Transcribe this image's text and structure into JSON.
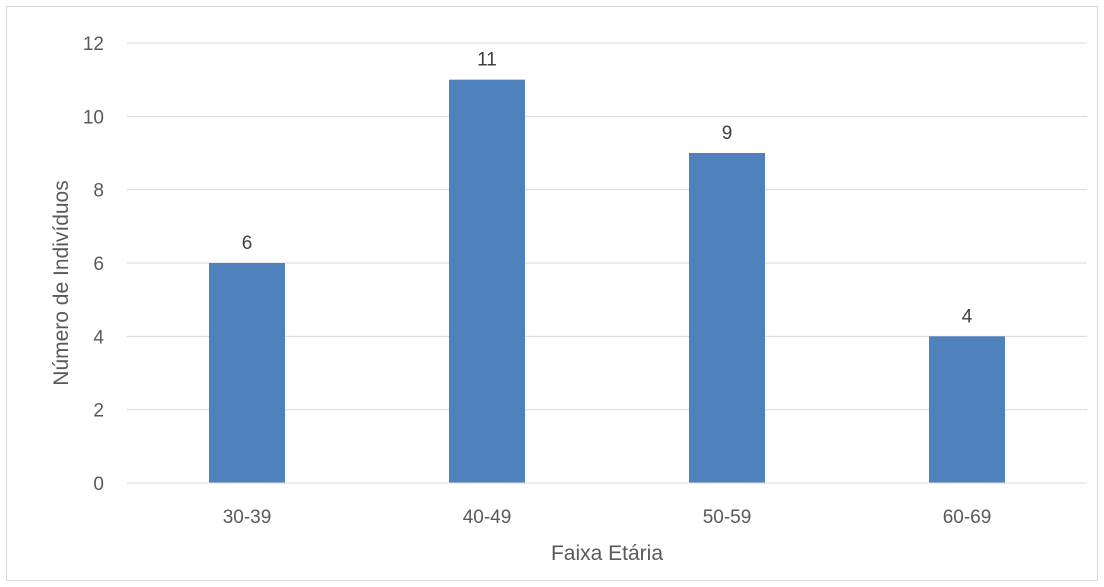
{
  "chart_data": {
    "type": "bar",
    "categories": [
      "30-39",
      "40-49",
      "50-59",
      "60-69"
    ],
    "values": [
      6,
      11,
      9,
      4
    ],
    "title": "",
    "xlabel": "Faixa Etária",
    "ylabel": "Número de Indivíduos",
    "ylim": [
      0,
      12
    ],
    "yticks": [
      0,
      2,
      4,
      6,
      8,
      10,
      12
    ],
    "grid": true,
    "legend": "none",
    "bar_color": "#4f81bd",
    "data_labels": true
  }
}
